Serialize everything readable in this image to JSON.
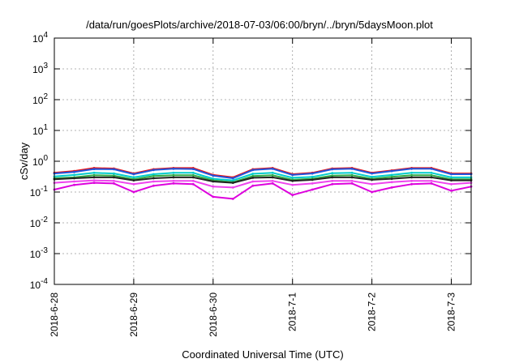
{
  "chart_data": {
    "type": "line",
    "title": "/data/run/goesPlots/archive/2018-07-03/06:00/bryn/../bryn/5daysMoon.plot",
    "xlabel": "Coordinated Universal Time (UTC)",
    "ylabel": "cSv/day",
    "yscale": "log",
    "ylim": [
      0.0001,
      10000
    ],
    "yticks": [
      {
        "base": "10",
        "exp": "-4",
        "value": 0.0001
      },
      {
        "base": "10",
        "exp": "-3",
        "value": 0.001
      },
      {
        "base": "10",
        "exp": "-2",
        "value": 0.01
      },
      {
        "base": "10",
        "exp": "-1",
        "value": 0.1
      },
      {
        "base": "10",
        "exp": "0",
        "value": 1
      },
      {
        "base": "10",
        "exp": "1",
        "value": 10
      },
      {
        "base": "10",
        "exp": "2",
        "value": 100
      },
      {
        "base": "10",
        "exp": "3",
        "value": 1000
      },
      {
        "base": "10",
        "exp": "4",
        "value": 10000
      }
    ],
    "xlim": [
      "2018-06-28",
      "2018-07-03T06:00"
    ],
    "xticks": [
      "2018-6-28",
      "2018-6-29",
      "2018-6-30",
      "2018-7-1",
      "2018-7-2",
      "2018-7-3"
    ],
    "grid": true,
    "x": [
      "2018-06-28T00:00",
      "2018-06-28T06:00",
      "2018-06-28T12:00",
      "2018-06-28T18:00",
      "2018-06-29T00:00",
      "2018-06-29T06:00",
      "2018-06-29T12:00",
      "2018-06-29T18:00",
      "2018-06-30T00:00",
      "2018-06-30T06:00",
      "2018-06-30T12:00",
      "2018-06-30T18:00",
      "2018-07-01T00:00",
      "2018-07-01T06:00",
      "2018-07-01T12:00",
      "2018-07-01T18:00",
      "2018-07-02T00:00",
      "2018-07-02T06:00",
      "2018-07-02T12:00",
      "2018-07-02T18:00",
      "2018-07-03T00:00",
      "2018-07-03T06:00"
    ],
    "series": [
      {
        "color": "#ee1111",
        "values": [
          0.42,
          0.48,
          0.6,
          0.58,
          0.4,
          0.55,
          0.6,
          0.6,
          0.36,
          0.3,
          0.55,
          0.6,
          0.38,
          0.42,
          0.58,
          0.6,
          0.42,
          0.5,
          0.6,
          0.6,
          0.4,
          0.4
        ]
      },
      {
        "color": "#2255dd",
        "values": [
          0.4,
          0.45,
          0.56,
          0.55,
          0.38,
          0.52,
          0.57,
          0.56,
          0.34,
          0.28,
          0.52,
          0.57,
          0.36,
          0.4,
          0.55,
          0.57,
          0.4,
          0.48,
          0.57,
          0.57,
          0.38,
          0.38
        ]
      },
      {
        "color": "#00cccc",
        "values": [
          0.32,
          0.36,
          0.42,
          0.4,
          0.3,
          0.38,
          0.42,
          0.42,
          0.27,
          0.24,
          0.39,
          0.42,
          0.29,
          0.31,
          0.41,
          0.42,
          0.31,
          0.36,
          0.42,
          0.42,
          0.3,
          0.3
        ]
      },
      {
        "color": "#33aa44",
        "values": [
          0.28,
          0.3,
          0.35,
          0.34,
          0.26,
          0.33,
          0.35,
          0.35,
          0.24,
          0.21,
          0.33,
          0.35,
          0.25,
          0.27,
          0.34,
          0.35,
          0.27,
          0.31,
          0.35,
          0.35,
          0.26,
          0.26
        ]
      },
      {
        "color": "#222222",
        "values": [
          0.26,
          0.28,
          0.3,
          0.3,
          0.24,
          0.28,
          0.3,
          0.3,
          0.22,
          0.2,
          0.29,
          0.3,
          0.23,
          0.25,
          0.3,
          0.3,
          0.25,
          0.27,
          0.3,
          0.3,
          0.24,
          0.24
        ]
      },
      {
        "color": "#ee44ee",
        "values": [
          0.2,
          0.22,
          0.24,
          0.23,
          0.18,
          0.22,
          0.23,
          0.23,
          0.15,
          0.14,
          0.22,
          0.23,
          0.17,
          0.19,
          0.23,
          0.23,
          0.18,
          0.21,
          0.23,
          0.23,
          0.18,
          0.2
        ]
      },
      {
        "color": "#dd00dd",
        "values": [
          0.12,
          0.17,
          0.2,
          0.19,
          0.1,
          0.16,
          0.19,
          0.18,
          0.07,
          0.06,
          0.16,
          0.19,
          0.08,
          0.12,
          0.18,
          0.19,
          0.1,
          0.14,
          0.18,
          0.19,
          0.11,
          0.15
        ]
      }
    ]
  }
}
